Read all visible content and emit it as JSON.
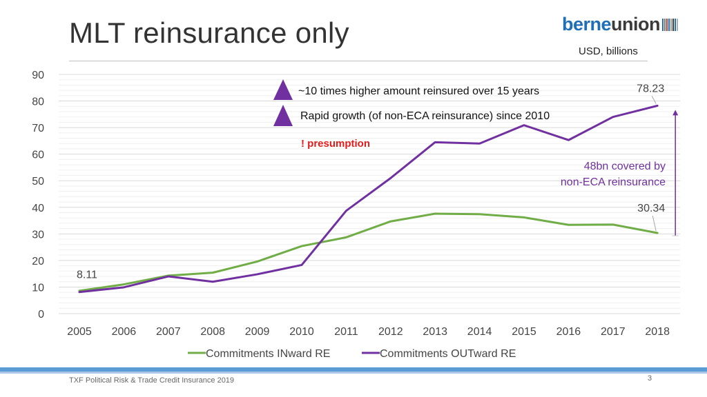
{
  "slide": {
    "title": "MLT reinsurance only",
    "unit_label": "USD, billions",
    "footer": "TXF Political Risk & Trade Credit Insurance 2019",
    "page_number": "3"
  },
  "logo": {
    "part1": "berne",
    "part2": "union",
    "color1": "#1f6fb6",
    "color2": "#3b3b3b"
  },
  "annotations": {
    "note1": "~10 times higher amount reinsured over 15 years",
    "note2": "Rapid growth (of non-ECA reinsurance) since 2010",
    "presumption": "! presumption",
    "covered_line1": "48bn covered by",
    "covered_line2": "non-ECA reinsurance",
    "marker_icon": "triangle-up-icon",
    "marker_color": "#7030a0"
  },
  "chart_data": {
    "type": "line",
    "x": [
      "2005",
      "2006",
      "2007",
      "2008",
      "2009",
      "2010",
      "2011",
      "2012",
      "2013",
      "2014",
      "2015",
      "2016",
      "2017",
      "2018"
    ],
    "ylim": [
      0,
      90
    ],
    "yticks": [
      0,
      10,
      20,
      30,
      40,
      50,
      60,
      70,
      80,
      90
    ],
    "grid": true,
    "legend_position": "bottom",
    "series": [
      {
        "name": "Commitments INward RE",
        "color": "#70ad47",
        "values": [
          8.6,
          11.0,
          14.3,
          15.4,
          19.6,
          25.4,
          28.7,
          34.7,
          37.6,
          37.4,
          36.2,
          33.4,
          33.5,
          30.34
        ]
      },
      {
        "name": "Commitments OUTward RE",
        "color": "#7030a0",
        "values": [
          8.11,
          9.9,
          14.0,
          12.0,
          14.8,
          18.3,
          38.7,
          51.0,
          64.5,
          64.0,
          70.9,
          65.3,
          74.0,
          78.23
        ]
      }
    ],
    "data_labels": [
      {
        "text": "8.11",
        "series": 1,
        "index": 0
      },
      {
        "text": "78.23",
        "series": 1,
        "index": 13
      },
      {
        "text": "30.34",
        "series": 0,
        "index": 13
      }
    ]
  }
}
